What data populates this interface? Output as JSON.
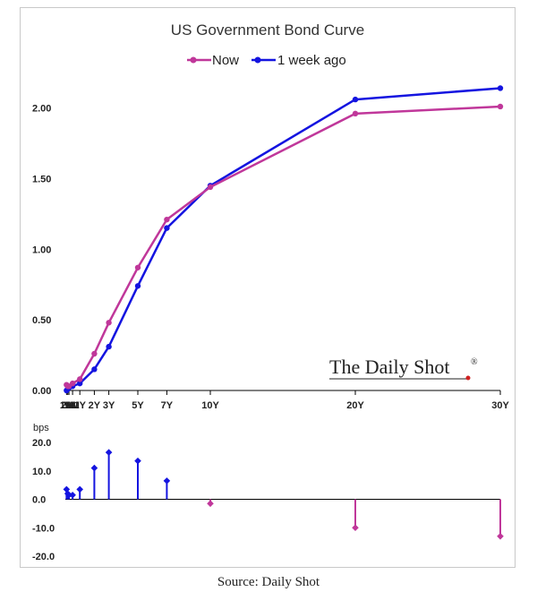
{
  "source": "Source: Daily Shot",
  "brand": {
    "text": "The Daily Shot",
    "mark": "®"
  },
  "colors": {
    "now": "#c0379a",
    "week_ago": "#1414e0",
    "positive_change": "#1414e0",
    "negative_change": "#c0379a",
    "axis": "#000000"
  },
  "chart_data": [
    {
      "type": "line",
      "title": "US Government Bond Curve",
      "categories": [
        "1M",
        "2M",
        "3M",
        "6M",
        "1Y",
        "2Y",
        "3Y",
        "5Y",
        "7Y",
        "10Y",
        "20Y",
        "30Y"
      ],
      "maturity_years": [
        0.0833,
        0.1667,
        0.25,
        0.5,
        1,
        2,
        3,
        5,
        7,
        10,
        20,
        30
      ],
      "ylim": [
        0,
        2.2
      ],
      "yticks": [
        "0.00",
        "0.50",
        "1.00",
        "1.50",
        "2.00"
      ],
      "ytick_values": [
        0,
        0.5,
        1.0,
        1.5,
        2.0
      ],
      "legend_position": "top-center",
      "series": [
        {
          "name": "Now",
          "values": [
            0.04,
            0.03,
            0.03,
            0.05,
            0.08,
            0.26,
            0.48,
            0.87,
            1.21,
            1.44,
            1.96,
            2.01
          ]
        },
        {
          "name": "1 week ago",
          "values": [
            0.0,
            0.01,
            0.02,
            0.03,
            0.05,
            0.15,
            0.31,
            0.74,
            1.15,
            1.45,
            2.06,
            2.14
          ]
        }
      ]
    },
    {
      "type": "bar",
      "subtype": "stem",
      "ylabel": "bps",
      "ylim": [
        -22,
        22
      ],
      "yticks": [
        "20.0",
        "10.0",
        "0.0",
        "-10.0",
        "-20.0"
      ],
      "ytick_values": [
        20,
        10,
        0,
        -10,
        -20
      ],
      "categories": [
        "1M",
        "2M",
        "3M",
        "6M",
        "1Y",
        "2Y",
        "3Y",
        "5Y",
        "7Y",
        "10Y",
        "20Y",
        "30Y"
      ],
      "values": [
        3.5,
        2.0,
        1.5,
        1.5,
        3.5,
        11.0,
        16.5,
        13.5,
        6.5,
        -1.5,
        -10.0,
        -13.0
      ]
    }
  ]
}
